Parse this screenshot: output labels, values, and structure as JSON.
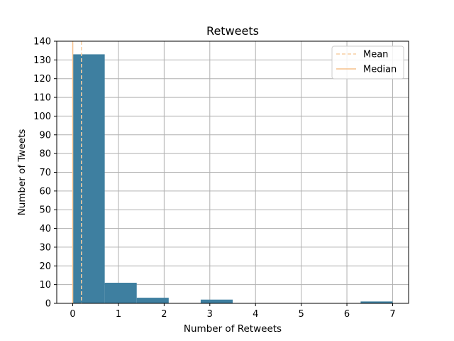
{
  "chart_data": {
    "type": "bar",
    "title": "Retweets",
    "xlabel": "Number of Retweets",
    "ylabel": "Number of Tweets",
    "xlim": [
      -0.35,
      7.35
    ],
    "ylim": [
      0,
      140
    ],
    "xticks": [
      0,
      1,
      2,
      3,
      4,
      5,
      6,
      7
    ],
    "yticks": [
      0,
      10,
      20,
      30,
      40,
      50,
      60,
      70,
      80,
      90,
      100,
      110,
      120,
      130,
      140
    ],
    "grid": true,
    "legend_position": "top-right",
    "bins": [
      {
        "start": 0.0,
        "end": 0.7,
        "count": 133
      },
      {
        "start": 0.7,
        "end": 1.4,
        "count": 11
      },
      {
        "start": 1.4,
        "end": 2.1,
        "count": 3
      },
      {
        "start": 2.1,
        "end": 2.8,
        "count": 0
      },
      {
        "start": 2.8,
        "end": 3.5,
        "count": 2
      },
      {
        "start": 3.5,
        "end": 4.2,
        "count": 0
      },
      {
        "start": 4.2,
        "end": 4.9,
        "count": 0
      },
      {
        "start": 4.9,
        "end": 5.6,
        "count": 0
      },
      {
        "start": 5.6,
        "end": 6.3,
        "count": 0
      },
      {
        "start": 6.3,
        "end": 7.0,
        "count": 1
      }
    ],
    "reference_lines": [
      {
        "name": "Mean",
        "value": 0.19,
        "style": "dashed"
      },
      {
        "name": "Median",
        "value": 0.0,
        "style": "solid"
      }
    ],
    "colors": {
      "bar": "#3e7fa0",
      "mean_line": "#f7cfa3",
      "median_line": "#f5c08c",
      "grid": "#b0b0b0"
    }
  }
}
